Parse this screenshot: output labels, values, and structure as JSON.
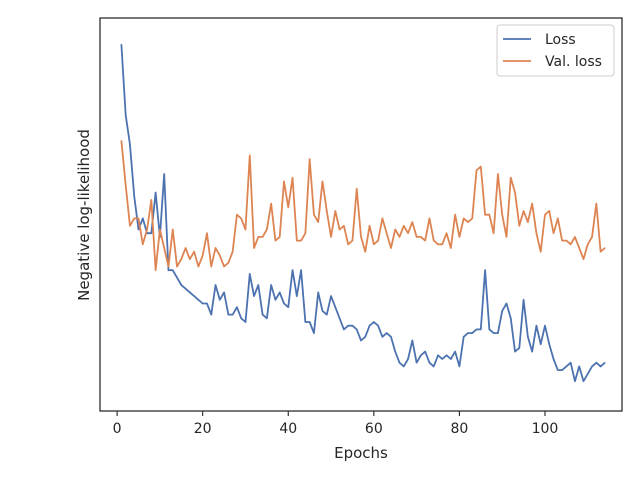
{
  "chart_data": {
    "type": "line",
    "xlabel": "Epochs",
    "ylabel": "Negative log-likelihood",
    "xlim": [
      -4,
      118
    ],
    "ylim": [
      0,
      100
    ],
    "y_ticks_shown": false,
    "grid": false,
    "legend_position": "top-right",
    "x_ticks": [
      0,
      20,
      40,
      60,
      80,
      100
    ],
    "colors": {
      "Loss": "#4c72b0",
      "Val. loss": "#dd8452",
      "frame": "#262626"
    },
    "series": [
      {
        "name": "Loss",
        "x": [
          1,
          2,
          3,
          4,
          5,
          6,
          7,
          8,
          9,
          10,
          11,
          12,
          13,
          14,
          15,
          16,
          17,
          18,
          19,
          20,
          21,
          22,
          23,
          24,
          25,
          26,
          27,
          28,
          29,
          30,
          31,
          32,
          33,
          34,
          35,
          36,
          37,
          38,
          39,
          40,
          41,
          42,
          43,
          44,
          45,
          46,
          47,
          48,
          49,
          50,
          51,
          52,
          53,
          54,
          55,
          56,
          57,
          58,
          59,
          60,
          61,
          62,
          63,
          64,
          65,
          66,
          67,
          68,
          69,
          70,
          71,
          72,
          73,
          74,
          75,
          76,
          77,
          78,
          79,
          80,
          81,
          82,
          83,
          84,
          85,
          86,
          87,
          88,
          89,
          90,
          91,
          92,
          93,
          94,
          95,
          96,
          97,
          98,
          99,
          100,
          101,
          102,
          103,
          104,
          105,
          106,
          107,
          108,
          109,
          110,
          111,
          112,
          113,
          114
        ],
        "values": [
          95,
          76,
          68,
          54,
          45,
          48,
          44,
          44,
          55,
          43,
          60,
          34,
          34,
          32,
          30,
          29,
          28,
          27,
          26,
          25,
          25,
          22,
          30,
          26,
          28,
          22,
          22,
          24,
          21,
          20,
          33,
          27,
          30,
          22,
          21,
          30,
          26,
          28,
          25,
          24,
          34,
          27,
          34,
          20,
          20,
          17,
          28,
          23,
          22,
          27,
          24,
          21,
          18,
          19,
          19,
          18,
          15,
          16,
          19,
          20,
          19,
          16,
          17,
          16,
          12,
          9,
          8,
          10,
          15,
          9,
          11,
          12,
          9,
          8,
          11,
          10,
          11,
          10,
          12,
          8,
          16,
          17,
          17,
          18,
          18,
          34,
          18,
          17,
          17,
          23,
          25,
          21,
          12,
          13,
          26,
          16,
          12,
          19,
          14,
          19,
          14,
          10,
          7,
          7,
          8,
          9,
          4,
          8,
          4,
          6,
          8,
          9,
          8,
          9
        ]
      },
      {
        "name": "Val. loss",
        "x": [
          1,
          2,
          3,
          4,
          5,
          6,
          7,
          8,
          9,
          10,
          11,
          12,
          13,
          14,
          15,
          16,
          17,
          18,
          19,
          20,
          21,
          22,
          23,
          24,
          25,
          26,
          27,
          28,
          29,
          30,
          31,
          32,
          33,
          34,
          35,
          36,
          37,
          38,
          39,
          40,
          41,
          42,
          43,
          44,
          45,
          46,
          47,
          48,
          49,
          50,
          51,
          52,
          53,
          54,
          55,
          56,
          57,
          58,
          59,
          60,
          61,
          62,
          63,
          64,
          65,
          66,
          67,
          68,
          69,
          70,
          71,
          72,
          73,
          74,
          75,
          76,
          77,
          78,
          79,
          80,
          81,
          82,
          83,
          84,
          85,
          86,
          87,
          88,
          89,
          90,
          91,
          92,
          93,
          94,
          95,
          96,
          97,
          98,
          99,
          100,
          101,
          102,
          103,
          104,
          105,
          106,
          107,
          108,
          109,
          110,
          111,
          112,
          113,
          114
        ],
        "values": [
          69,
          57,
          46,
          48,
          48,
          41,
          45,
          53,
          34,
          45,
          40,
          35,
          45,
          35,
          37,
          40,
          37,
          39,
          35,
          38,
          44,
          35,
          40,
          38,
          35,
          36,
          39,
          49,
          48,
          45,
          65,
          40,
          43,
          43,
          45,
          52,
          42,
          43,
          58,
          51,
          59,
          42,
          42,
          44,
          64,
          49,
          47,
          58,
          50,
          43,
          50,
          45,
          46,
          41,
          42,
          56,
          43,
          39,
          46,
          41,
          42,
          48,
          44,
          40,
          45,
          43,
          46,
          44,
          47,
          43,
          43,
          42,
          48,
          42,
          41,
          41,
          44,
          40,
          49,
          43,
          48,
          47,
          48,
          61,
          62,
          49,
          49,
          44,
          60,
          49,
          43,
          59,
          55,
          46,
          50,
          47,
          52,
          44,
          39,
          49,
          50,
          44,
          48,
          42,
          42,
          41,
          43,
          40,
          37,
          41,
          43,
          52,
          39,
          40
        ]
      }
    ]
  }
}
